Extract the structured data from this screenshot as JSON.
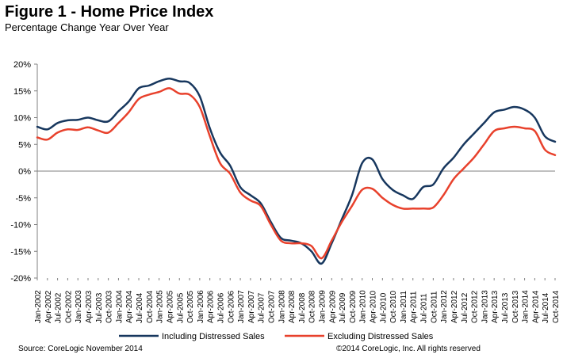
{
  "header": {
    "title": "Figure 1 - Home Price Index",
    "subtitle": "Percentage Change Year Over Year"
  },
  "footer": {
    "source": "Source: CoreLogic November 2014",
    "copyright": "©2014 CoreLogic, Inc. All rights reserved"
  },
  "colors": {
    "including": "#17375e",
    "excluding": "#e8412c",
    "axis": "#808080"
  },
  "chart_data": {
    "type": "line",
    "title": "Figure 1 - Home Price Index",
    "subtitle": "Percentage Change Year Over Year",
    "y_ticks": [
      "20%",
      "15%",
      "10%",
      "5%",
      "0%",
      "-5%",
      "-10%",
      "-15%",
      "-20%"
    ],
    "ylim": [
      -20,
      20
    ],
    "x_range": [
      "2002-01",
      "2014-10"
    ],
    "x_tick_labels": [
      "Jan-2002",
      "Apr-2002",
      "Jul-2002",
      "Oct-2002",
      "Jan-2003",
      "Apr-2003",
      "Jul-2003",
      "Oct-2003",
      "Jan-2004",
      "Apr-2004",
      "Jul-2004",
      "Oct-2004",
      "Jan-2005",
      "Apr-2005",
      "Jul-2005",
      "Oct-2005",
      "Jan-2006",
      "Apr-2006",
      "Jul-2006",
      "Oct-2006",
      "Jan-2007",
      "Apr-2007",
      "Jul-2007",
      "Oct-2007",
      "Jan-2008",
      "Apr-2008",
      "Jul-2008",
      "Oct-2008",
      "Jan-2009",
      "Apr-2009",
      "Jul-2009",
      "Oct-2009",
      "Jan-2010",
      "Apr-2010",
      "Jul-2010",
      "Oct-2010",
      "Jan-2011",
      "Apr-2011",
      "Jul-2011",
      "Oct-2011",
      "Jan-2012",
      "Apr-2012",
      "Jul-2012",
      "Oct-2012",
      "Jan-2013",
      "Apr-2013",
      "Jul-2013",
      "Oct-2013",
      "Jan-2014",
      "Apr-2014",
      "Jul-2014",
      "Oct-2014"
    ],
    "grid": false,
    "legend_position": "bottom",
    "series": [
      {
        "name": "Including Distressed Sales",
        "points": [
          [
            "2002-01",
            8.3
          ],
          [
            "2002-04",
            7.8
          ],
          [
            "2002-07",
            9.0
          ],
          [
            "2002-10",
            9.5
          ],
          [
            "2003-01",
            9.6
          ],
          [
            "2003-04",
            10.0
          ],
          [
            "2003-07",
            9.5
          ],
          [
            "2003-10",
            9.3
          ],
          [
            "2004-01",
            11.2
          ],
          [
            "2004-04",
            13.0
          ],
          [
            "2004-07",
            15.5
          ],
          [
            "2004-10",
            16.0
          ],
          [
            "2005-01",
            16.8
          ],
          [
            "2005-04",
            17.3
          ],
          [
            "2005-07",
            16.8
          ],
          [
            "2005-10",
            16.5
          ],
          [
            "2006-01",
            14.0
          ],
          [
            "2006-04",
            8.0
          ],
          [
            "2006-07",
            3.5
          ],
          [
            "2006-10",
            1.0
          ],
          [
            "2007-01",
            -3.0
          ],
          [
            "2007-04",
            -4.5
          ],
          [
            "2007-07",
            -6.0
          ],
          [
            "2007-10",
            -9.5
          ],
          [
            "2008-01",
            -12.5
          ],
          [
            "2008-04",
            -13.0
          ],
          [
            "2008-07",
            -13.5
          ],
          [
            "2008-10",
            -15.0
          ],
          [
            "2009-01",
            -17.3
          ],
          [
            "2009-04",
            -13.5
          ],
          [
            "2009-07",
            -9.0
          ],
          [
            "2009-10",
            -4.5
          ],
          [
            "2010-01",
            1.5
          ],
          [
            "2010-04",
            2.2
          ],
          [
            "2010-07",
            -1.5
          ],
          [
            "2010-10",
            -3.5
          ],
          [
            "2011-01",
            -4.5
          ],
          [
            "2011-04",
            -5.2
          ],
          [
            "2011-07",
            -3.0
          ],
          [
            "2011-10",
            -2.5
          ],
          [
            "2012-01",
            0.5
          ],
          [
            "2012-04",
            2.5
          ],
          [
            "2012-07",
            5.0
          ],
          [
            "2012-10",
            7.0
          ],
          [
            "2013-01",
            9.0
          ],
          [
            "2013-04",
            11.0
          ],
          [
            "2013-07",
            11.5
          ],
          [
            "2013-10",
            12.0
          ],
          [
            "2014-01",
            11.5
          ],
          [
            "2014-04",
            10.0
          ],
          [
            "2014-07",
            6.5
          ],
          [
            "2014-10",
            5.5
          ]
        ]
      },
      {
        "name": "Excluding Distressed Sales",
        "points": [
          [
            "2002-01",
            6.3
          ],
          [
            "2002-04",
            5.9
          ],
          [
            "2002-07",
            7.2
          ],
          [
            "2002-10",
            7.8
          ],
          [
            "2003-01",
            7.7
          ],
          [
            "2003-04",
            8.2
          ],
          [
            "2003-07",
            7.6
          ],
          [
            "2003-10",
            7.2
          ],
          [
            "2004-01",
            9.0
          ],
          [
            "2004-04",
            11.0
          ],
          [
            "2004-07",
            13.5
          ],
          [
            "2004-10",
            14.3
          ],
          [
            "2005-01",
            14.8
          ],
          [
            "2005-04",
            15.5
          ],
          [
            "2005-07",
            14.5
          ],
          [
            "2005-10",
            14.3
          ],
          [
            "2006-01",
            12.0
          ],
          [
            "2006-04",
            6.5
          ],
          [
            "2006-07",
            1.5
          ],
          [
            "2006-10",
            -0.5
          ],
          [
            "2007-01",
            -4.0
          ],
          [
            "2007-04",
            -5.5
          ],
          [
            "2007-07",
            -6.5
          ],
          [
            "2007-10",
            -10.0
          ],
          [
            "2008-01",
            -13.0
          ],
          [
            "2008-04",
            -13.5
          ],
          [
            "2008-07",
            -13.5
          ],
          [
            "2008-10",
            -14.0
          ],
          [
            "2009-01",
            -16.3
          ],
          [
            "2009-04",
            -13.0
          ],
          [
            "2009-07",
            -9.5
          ],
          [
            "2009-10",
            -6.5
          ],
          [
            "2010-01",
            -3.5
          ],
          [
            "2010-04",
            -3.3
          ],
          [
            "2010-07",
            -5.0
          ],
          [
            "2010-10",
            -6.3
          ],
          [
            "2011-01",
            -7.0
          ],
          [
            "2011-04",
            -7.0
          ],
          [
            "2011-07",
            -7.0
          ],
          [
            "2011-10",
            -6.8
          ],
          [
            "2012-01",
            -4.5
          ],
          [
            "2012-04",
            -1.5
          ],
          [
            "2012-07",
            0.5
          ],
          [
            "2012-10",
            2.5
          ],
          [
            "2013-01",
            5.0
          ],
          [
            "2013-04",
            7.5
          ],
          [
            "2013-07",
            8.0
          ],
          [
            "2013-10",
            8.3
          ],
          [
            "2014-01",
            8.0
          ],
          [
            "2014-04",
            7.5
          ],
          [
            "2014-07",
            4.0
          ],
          [
            "2014-10",
            3.0
          ]
        ]
      }
    ]
  }
}
